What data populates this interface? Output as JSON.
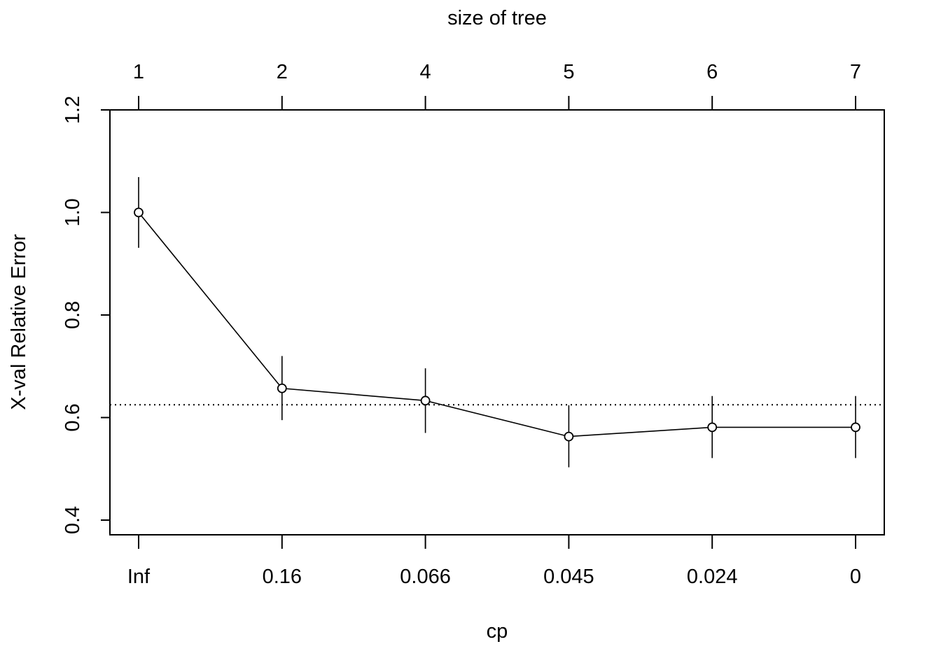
{
  "chart_data": {
    "type": "line",
    "title": "",
    "top_axis_label": "size of tree",
    "xlabel": "cp",
    "ylabel": "X-val Relative Error",
    "categories": [
      "Inf",
      "0.16",
      "0.066",
      "0.045",
      "0.024",
      "0"
    ],
    "top_categories": [
      "1",
      "2",
      "4",
      "5",
      "6",
      "7"
    ],
    "series": [
      {
        "name": "xerror",
        "values": [
          1.0,
          0.657,
          0.633,
          0.563,
          0.581,
          0.581
        ],
        "error_low": [
          0.931,
          0.595,
          0.57,
          0.503,
          0.521,
          0.521
        ],
        "error_high": [
          1.069,
          0.72,
          0.696,
          0.624,
          0.642,
          0.642
        ]
      }
    ],
    "reference_line": 0.625,
    "ylim": [
      0.4,
      1.2
    ],
    "yticks": [
      "0.4",
      "0.6",
      "0.8",
      "1.0",
      "1.2"
    ],
    "ytick_values": [
      0.4,
      0.6,
      0.8,
      1.0,
      1.2
    ],
    "grid": false,
    "colors": {
      "line": "#000000",
      "background": "#ffffff"
    }
  }
}
